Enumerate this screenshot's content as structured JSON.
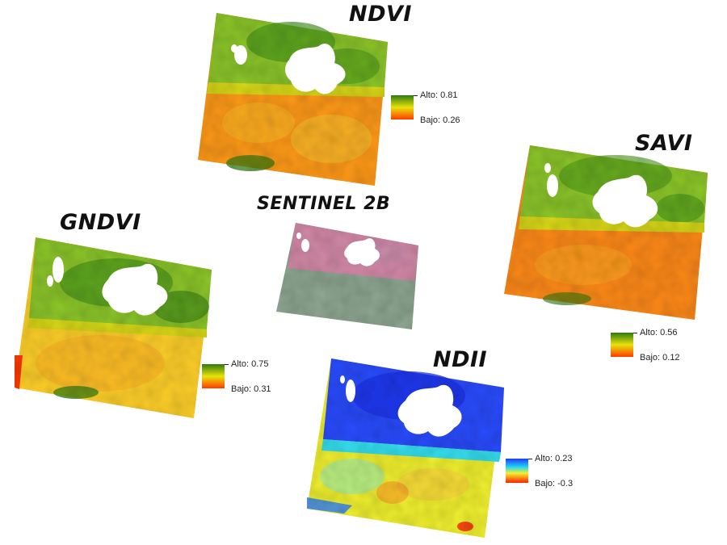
{
  "colors": {
    "veg_high": "#2f7a12",
    "veg_mid": "#e8e30a",
    "veg_low": "#ff3a00",
    "ndii_high": "#1a3cff",
    "ndii_mid": "#f2f230",
    "ndii_low": "#ff2000",
    "sentinel_top": "#d48aa8",
    "sentinel_bottom": "#8fa892"
  },
  "panels": {
    "ndvi": {
      "title": "NDVI",
      "legend": {
        "high_label": "Alto:",
        "high_value": "0.81",
        "low_label": "Bajo:",
        "low_value": "0.26"
      }
    },
    "savi": {
      "title": "SAVI",
      "legend": {
        "high_label": "Alto:",
        "high_value": "0.56",
        "low_label": "Bajo:",
        "low_value": "0.12"
      }
    },
    "gndvi": {
      "title": "GNDVI",
      "legend": {
        "high_label": "Alto:",
        "high_value": "0.75",
        "low_label": "Bajo:",
        "low_value": "0.31"
      }
    },
    "sentinel": {
      "title": "SENTINEL 2B"
    },
    "ndii": {
      "title": "NDII",
      "legend": {
        "high_label": "Alto:",
        "high_value": "0.23",
        "low_label": "Bajo:",
        "low_value": "-0.3"
      }
    }
  }
}
